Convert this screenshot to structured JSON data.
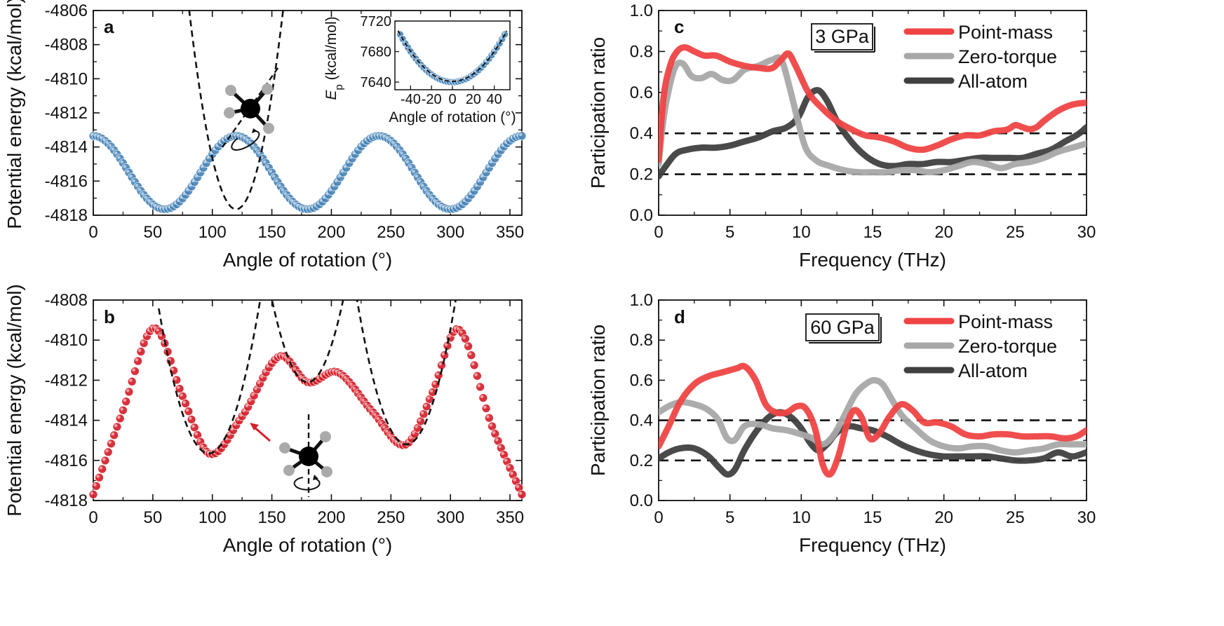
{
  "colors": {
    "blue_marker": "#4a86b8",
    "red_marker": "#d6202b",
    "point_mass": "#ef4444",
    "zero_torque": "#a8a8a8",
    "all_atom": "#404040",
    "fit_dashed": "#111111"
  },
  "chart_data": [
    {
      "panel": "a",
      "type": "scatter",
      "xlabel": "Angle of rotation (°)",
      "ylabel": "Potential energy (kcal/mol)",
      "xlim": [
        0,
        360
      ],
      "ylim": [
        -4818,
        -4806
      ],
      "xticks": [
        0,
        50,
        100,
        150,
        200,
        250,
        300,
        350
      ],
      "yticks": [
        -4818,
        -4816,
        -4814,
        -4812,
        -4810,
        -4808,
        -4806
      ],
      "series": [
        {
          "name": "Potential energy",
          "marker": "circle",
          "x_range": [
            0,
            360
          ],
          "x_step": 2.5,
          "model": "cos3",
          "mean": -4815.5,
          "amplitude": 2.15,
          "phase_deg": 60
        },
        {
          "name": "Harmonic fit",
          "style": "dashed",
          "center": 120,
          "minimum": -4817.65,
          "curvature": 0.0075
        }
      ],
      "inset": {
        "xlabel": "Angle of rotation (°)",
        "ylabel_symbol": "E",
        "ylabel_subscript": "p",
        "ylabel_rest": "(kcal/mol)",
        "xlim": [
          -55,
          55
        ],
        "ylim": [
          7630,
          7720
        ],
        "xticks": [
          -40,
          -20,
          0,
          20,
          40
        ],
        "yticks": [
          7640,
          7680,
          7720
        ],
        "series": [
          {
            "name": "Ep",
            "marker": "circle",
            "x_range": [
              -50,
              50
            ],
            "x_step": 2.5,
            "minimum": 7640,
            "curvature": 0.025
          },
          {
            "name": "Harmonic fit",
            "style": "dashed",
            "minimum": 7641,
            "curvature": 0.0245
          }
        ]
      }
    },
    {
      "panel": "b",
      "type": "scatter",
      "xlabel": "Angle of rotation (°)",
      "ylabel": "Potential energy (kcal/mol)",
      "xlim": [
        0,
        360
      ],
      "ylim": [
        -4818,
        -4808
      ],
      "xticks": [
        0,
        50,
        100,
        150,
        200,
        250,
        300,
        350
      ],
      "yticks": [
        -4818,
        -4816,
        -4814,
        -4812,
        -4810,
        -4808
      ],
      "series": [
        {
          "name": "Potential energy",
          "marker": "circle",
          "x_range": [
            0,
            360
          ],
          "x_step": 2.5,
          "knots": [
            [
              0,
              -4817.7
            ],
            [
              25,
              -4813.5
            ],
            [
              51,
              -4809.4
            ],
            [
              75,
              -4812.8
            ],
            [
              97,
              -4815.65
            ],
            [
              125,
              -4813.8
            ],
            [
              157,
              -4810.8
            ],
            [
              180,
              -4812.1
            ],
            [
              205,
              -4811.6
            ],
            [
              235,
              -4813.6
            ],
            [
              263,
              -4815.2
            ],
            [
              285,
              -4812.6
            ],
            [
              306,
              -4809.45
            ],
            [
              335,
              -4814.3
            ],
            [
              360,
              -4817.7
            ]
          ]
        },
        {
          "name": "Fit 1",
          "style": "dashed",
          "center": 97,
          "minimum": -4815.65,
          "curvature": 0.0041,
          "x_range": [
            55,
            140
          ]
        },
        {
          "name": "Fit 2",
          "style": "dashed",
          "center": 180,
          "minimum": -4812.1,
          "curvature": 0.0046,
          "x_range": [
            135,
            226
          ]
        },
        {
          "name": "Fit 3",
          "style": "dashed",
          "center": 263,
          "minimum": -4815.2,
          "curvature": 0.0042,
          "x_range": [
            221,
            305
          ]
        }
      ]
    },
    {
      "panel": "c",
      "type": "line",
      "annotation": "3 GPa",
      "xlabel": "Frequency (THz)",
      "ylabel": "Participation ratio",
      "xlim": [
        0,
        30
      ],
      "ylim": [
        0,
        1.0
      ],
      "xticks": [
        0,
        5,
        10,
        15,
        20,
        25,
        30
      ],
      "yticks": [
        0.0,
        0.2,
        0.4,
        0.6,
        0.8,
        1.0
      ],
      "hlines": [
        0.2,
        0.4
      ],
      "legend_position": "top-right",
      "series": [
        {
          "name": "Point-mass",
          "x": [
            0,
            0.3,
            0.8,
            1.3,
            1.8,
            2.5,
            3.2,
            4,
            5,
            6,
            7,
            8,
            8.6,
            9.1,
            9.6,
            10.5,
            11.5,
            12.5,
            13.5,
            14.5,
            15.5,
            16.5,
            17.5,
            18.5,
            19.5,
            20.5,
            21.5,
            22.5,
            23.5,
            24.5,
            25,
            25.5,
            26,
            26.5,
            27,
            28,
            29,
            30
          ],
          "y": [
            0.27,
            0.55,
            0.73,
            0.8,
            0.82,
            0.8,
            0.78,
            0.78,
            0.75,
            0.73,
            0.72,
            0.72,
            0.76,
            0.79,
            0.73,
            0.6,
            0.52,
            0.46,
            0.42,
            0.39,
            0.38,
            0.36,
            0.33,
            0.32,
            0.34,
            0.37,
            0.39,
            0.39,
            0.41,
            0.42,
            0.44,
            0.43,
            0.42,
            0.43,
            0.46,
            0.51,
            0.54,
            0.55
          ]
        },
        {
          "name": "Zero-torque",
          "x": [
            0,
            0.3,
            0.8,
            1.2,
            1.7,
            2.3,
            3,
            3.7,
            4.5,
            5.2,
            6,
            7,
            8,
            8.6,
            9.2,
            9.8,
            10.3,
            11,
            12,
            13,
            14,
            15,
            16,
            17,
            18,
            19,
            20,
            21,
            22,
            23,
            24,
            25,
            26,
            27,
            28,
            29,
            30
          ],
          "y": [
            0.25,
            0.45,
            0.64,
            0.73,
            0.74,
            0.68,
            0.67,
            0.69,
            0.66,
            0.66,
            0.71,
            0.73,
            0.76,
            0.76,
            0.62,
            0.45,
            0.33,
            0.27,
            0.24,
            0.22,
            0.21,
            0.21,
            0.21,
            0.22,
            0.22,
            0.21,
            0.22,
            0.24,
            0.26,
            0.25,
            0.23,
            0.25,
            0.26,
            0.28,
            0.31,
            0.33,
            0.35
          ]
        },
        {
          "name": "All-atom",
          "x": [
            0,
            0.5,
            1.2,
            2,
            3,
            4,
            5,
            6,
            7,
            8,
            9,
            9.8,
            10.5,
            11.2,
            11.8,
            12.5,
            13.5,
            14.5,
            15.5,
            16.5,
            17.5,
            18.5,
            19.5,
            20.5,
            21.5,
            22.5,
            23.5,
            24.5,
            25.5,
            26.5,
            27.5,
            28.5,
            29.5,
            30
          ],
          "y": [
            0.19,
            0.24,
            0.3,
            0.32,
            0.33,
            0.33,
            0.34,
            0.36,
            0.38,
            0.41,
            0.43,
            0.48,
            0.58,
            0.61,
            0.56,
            0.46,
            0.36,
            0.29,
            0.25,
            0.24,
            0.25,
            0.25,
            0.26,
            0.26,
            0.27,
            0.28,
            0.28,
            0.28,
            0.28,
            0.3,
            0.32,
            0.36,
            0.4,
            0.43
          ]
        }
      ]
    },
    {
      "panel": "d",
      "type": "line",
      "annotation": "60 GPa",
      "xlabel": "Frequency (THz)",
      "ylabel": "Participation ratio",
      "xlim": [
        0,
        30
      ],
      "ylim": [
        0,
        1.0
      ],
      "xticks": [
        0,
        5,
        10,
        15,
        20,
        25,
        30
      ],
      "yticks": [
        0.0,
        0.2,
        0.4,
        0.6,
        0.8,
        1.0
      ],
      "hlines": [
        0.2,
        0.4
      ],
      "legend_position": "top-right",
      "series": [
        {
          "name": "Point-mass",
          "x": [
            0,
            0.7,
            1.5,
            2.5,
            3.5,
            4.5,
            5.5,
            6,
            6.8,
            7.5,
            8.2,
            9,
            9.7,
            10.3,
            11,
            11.5,
            12,
            12.6,
            13.2,
            13.7,
            14.2,
            14.8,
            15.4,
            16.2,
            17,
            17.8,
            18.6,
            19.5,
            20.5,
            21.5,
            22.5,
            23.5,
            24.5,
            25.5,
            26.5,
            27.5,
            28.5,
            29.3,
            30
          ],
          "y": [
            0.27,
            0.37,
            0.49,
            0.58,
            0.62,
            0.64,
            0.66,
            0.67,
            0.6,
            0.48,
            0.44,
            0.44,
            0.47,
            0.46,
            0.35,
            0.18,
            0.13,
            0.22,
            0.38,
            0.45,
            0.42,
            0.31,
            0.33,
            0.42,
            0.48,
            0.45,
            0.39,
            0.39,
            0.37,
            0.33,
            0.32,
            0.33,
            0.33,
            0.32,
            0.32,
            0.32,
            0.31,
            0.32,
            0.35
          ]
        },
        {
          "name": "Zero-torque",
          "x": [
            0,
            0.7,
            1.5,
            2.5,
            3.5,
            4.2,
            4.8,
            5.3,
            6,
            7,
            8,
            9,
            10,
            10.8,
            11.5,
            12.2,
            13,
            13.8,
            14.5,
            15.1,
            15.7,
            16.3,
            17,
            18,
            19,
            20,
            21,
            22,
            23,
            24,
            25,
            26,
            27,
            28,
            29,
            30
          ],
          "y": [
            0.44,
            0.47,
            0.49,
            0.48,
            0.45,
            0.4,
            0.31,
            0.3,
            0.37,
            0.38,
            0.36,
            0.35,
            0.33,
            0.31,
            0.28,
            0.32,
            0.42,
            0.53,
            0.58,
            0.6,
            0.58,
            0.51,
            0.43,
            0.36,
            0.3,
            0.27,
            0.26,
            0.27,
            0.27,
            0.25,
            0.24,
            0.25,
            0.26,
            0.28,
            0.28,
            0.28
          ]
        },
        {
          "name": "All-atom",
          "x": [
            0,
            0.7,
            1.5,
            2.5,
            3.5,
            4.3,
            4.8,
            5.3,
            6,
            7,
            7.8,
            8.5,
            9.2,
            10,
            10.6,
            11.2,
            11.8,
            12.5,
            13.3,
            14.2,
            15,
            16,
            17,
            18,
            19,
            20,
            21,
            22,
            23,
            24,
            25,
            26,
            27,
            28,
            29,
            30
          ],
          "y": [
            0.21,
            0.24,
            0.26,
            0.26,
            0.22,
            0.16,
            0.13,
            0.15,
            0.25,
            0.36,
            0.42,
            0.44,
            0.42,
            0.36,
            0.29,
            0.25,
            0.28,
            0.34,
            0.37,
            0.36,
            0.35,
            0.32,
            0.28,
            0.25,
            0.23,
            0.22,
            0.22,
            0.22,
            0.22,
            0.21,
            0.2,
            0.2,
            0.21,
            0.24,
            0.22,
            0.24
          ]
        }
      ]
    }
  ]
}
